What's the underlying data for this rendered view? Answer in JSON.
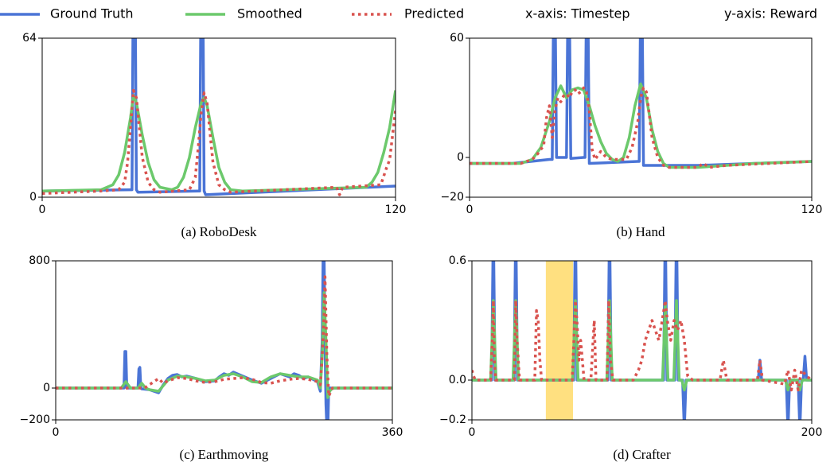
{
  "legend": {
    "items": [
      {
        "name": "Ground Truth",
        "color": "#4a74d6",
        "style": "solid"
      },
      {
        "name": "Smoothed",
        "color": "#6cc96c",
        "style": "solid"
      },
      {
        "name": "Predicted",
        "color": "#d9534f",
        "style": "dotted"
      }
    ],
    "notes": [
      "x-axis: Timestep",
      "y-axis: Reward"
    ]
  },
  "chart_data": [
    {
      "type": "line",
      "title": "(a) RoboDesk",
      "xlim": [
        0,
        120
      ],
      "xticks": [
        0,
        120
      ],
      "ylim": [
        0,
        64
      ],
      "yticks": [
        0,
        64
      ],
      "series": [
        {
          "color": "#4a74d6",
          "style": "solid",
          "x": [
            0,
            30,
            30.5,
            31,
            31.5,
            32,
            32.5,
            53,
            53.5,
            54,
            54.5,
            55,
            55.5,
            120
          ],
          "values": [
            2.5,
            3,
            3,
            100,
            100,
            3,
            2,
            2.5,
            2.5,
            100,
            100,
            2.5,
            1,
            4.5
          ]
        },
        {
          "color": "#6cc96c",
          "style": "solid",
          "x": [
            0,
            20,
            24,
            26,
            28,
            30,
            31,
            32,
            34,
            36,
            38,
            40,
            44,
            46,
            48,
            50,
            52,
            54,
            55,
            56,
            58,
            60,
            62,
            64,
            68,
            110,
            112,
            114,
            116,
            118,
            120
          ],
          "values": [
            2.5,
            3,
            5,
            9,
            18,
            32,
            41,
            38,
            25,
            14,
            7,
            4,
            3,
            4,
            8,
            16,
            28,
            38,
            40,
            37,
            24,
            12,
            6,
            3,
            2.5,
            4,
            6,
            10,
            18,
            28,
            43
          ]
        },
        {
          "color": "#d9534f",
          "style": "dotted",
          "x": [
            0,
            20,
            26,
            28,
            29,
            30,
            31,
            32,
            33,
            34,
            36,
            38,
            40,
            50,
            52,
            53,
            54,
            55,
            56,
            57,
            58,
            60,
            62,
            64,
            100,
            101,
            102,
            115,
            117,
            118,
            120
          ],
          "values": [
            1.5,
            2.5,
            3,
            6,
            14,
            28,
            43,
            40,
            28,
            16,
            6,
            3,
            2,
            3,
            8,
            20,
            34,
            42,
            38,
            26,
            14,
            5,
            3,
            2,
            4,
            1,
            4,
            5,
            12,
            15,
            35
          ]
        }
      ]
    },
    {
      "type": "line",
      "title": "(b) Hand",
      "xlim": [
        0,
        120
      ],
      "xticks": [
        0,
        120
      ],
      "ylim": [
        -20,
        60
      ],
      "yticks": [
        {
          "value": -20,
          "label": "−20"
        },
        0,
        60
      ],
      "series": [
        {
          "color": "#4a74d6",
          "style": "solid",
          "x": [
            0,
            15,
            28,
            29,
            29.5,
            30,
            30.5,
            34,
            34.5,
            35,
            35.5,
            40,
            40.5,
            41,
            41.5,
            42,
            59,
            59.5,
            60,
            60.5,
            61,
            80,
            100,
            120
          ],
          "values": [
            -3,
            -3,
            -1,
            -1,
            80,
            80,
            0,
            0,
            80,
            80,
            -0.5,
            0,
            0,
            80,
            80,
            -3,
            -2,
            -2,
            80,
            80,
            -4,
            -4,
            -3,
            -2
          ]
        },
        {
          "color": "#6cc96c",
          "style": "solid",
          "x": [
            0,
            18,
            22,
            25,
            28,
            30,
            32,
            34,
            36,
            38,
            40,
            42,
            44,
            46,
            48,
            50,
            52,
            54,
            56,
            58,
            60,
            62,
            64,
            66,
            68,
            70,
            80,
            90,
            100,
            120
          ],
          "values": [
            -3,
            -3,
            -1,
            5,
            18,
            30,
            36,
            30,
            34,
            35,
            34,
            26,
            16,
            8,
            2,
            -1,
            -2,
            0,
            10,
            26,
            37,
            30,
            14,
            3,
            -3,
            -5,
            -5,
            -4,
            -3,
            -2
          ]
        },
        {
          "color": "#d9534f",
          "style": "dotted",
          "x": [
            0,
            18,
            22,
            24,
            26,
            27,
            28,
            29,
            30,
            31,
            32,
            33,
            34,
            35,
            36,
            37,
            38,
            39,
            40,
            41,
            42,
            43,
            44,
            46,
            48,
            50,
            55,
            57,
            59,
            60,
            61,
            62,
            63,
            64,
            66,
            68,
            70,
            80,
            82,
            84,
            90,
            120
          ],
          "values": [
            -3,
            -3,
            -1,
            2,
            6,
            20,
            26,
            10,
            24,
            30,
            28,
            31,
            32,
            30,
            33,
            34,
            32,
            33,
            35,
            33,
            24,
            4,
            -1,
            3,
            0,
            -1,
            -1,
            5,
            18,
            30,
            35,
            33,
            22,
            10,
            0,
            -4,
            -5,
            -5,
            -3,
            -5,
            -4,
            -2
          ]
        }
      ]
    },
    {
      "type": "line",
      "title": "(c) Earthmoving",
      "xlim": [
        0,
        360
      ],
      "xticks": [
        0,
        360
      ],
      "ylim": [
        -200,
        800
      ],
      "yticks": [
        {
          "value": -200,
          "label": "−200"
        },
        0,
        800
      ],
      "series": [
        {
          "color": "#4a74d6",
          "style": "solid",
          "x": [
            0,
            72,
            73,
            74,
            75,
            76,
            77,
            88,
            89,
            90,
            91,
            92,
            100,
            110,
            115,
            120,
            125,
            130,
            135,
            140,
            150,
            160,
            170,
            175,
            180,
            185,
            190,
            200,
            210,
            220,
            230,
            240,
            250,
            255,
            260,
            265,
            270,
            280,
            283,
            285,
            286,
            287,
            288,
            289,
            290,
            291,
            292,
            295,
            360
          ],
          "values": [
            0,
            0,
            0,
            230,
            230,
            0,
            0,
            0,
            120,
            130,
            0,
            -5,
            -10,
            -30,
            20,
            60,
            80,
            85,
            70,
            75,
            60,
            40,
            45,
            70,
            90,
            80,
            100,
            75,
            50,
            30,
            60,
            90,
            70,
            90,
            80,
            60,
            70,
            40,
            -20,
            300,
            850,
            850,
            300,
            -100,
            -250,
            -250,
            0,
            0,
            0
          ]
        },
        {
          "color": "#6cc96c",
          "style": "solid",
          "x": [
            0,
            70,
            75,
            80,
            88,
            92,
            96,
            100,
            110,
            120,
            130,
            140,
            150,
            160,
            170,
            180,
            190,
            200,
            210,
            220,
            230,
            240,
            250,
            260,
            270,
            280,
            283,
            285,
            287,
            289,
            291,
            293,
            296,
            360
          ],
          "values": [
            0,
            0,
            40,
            0,
            0,
            30,
            0,
            -10,
            -20,
            50,
            75,
            70,
            60,
            45,
            50,
            80,
            90,
            70,
            40,
            35,
            70,
            90,
            80,
            70,
            70,
            50,
            0,
            200,
            600,
            300,
            -60,
            -20,
            0,
            0
          ]
        },
        {
          "color": "#d9534f",
          "style": "dotted",
          "x": [
            0,
            80,
            95,
            100,
            105,
            110,
            115,
            120,
            130,
            140,
            150,
            160,
            170,
            180,
            190,
            200,
            210,
            220,
            230,
            240,
            250,
            260,
            270,
            280,
            283,
            285,
            287,
            288,
            290,
            292,
            296,
            360
          ],
          "values": [
            0,
            0,
            0,
            20,
            40,
            60,
            30,
            45,
            65,
            60,
            45,
            35,
            40,
            55,
            60,
            65,
            55,
            35,
            30,
            45,
            55,
            60,
            55,
            40,
            20,
            200,
            450,
            700,
            200,
            -50,
            0,
            0
          ]
        }
      ]
    },
    {
      "type": "line",
      "title": "(d) Crafter",
      "xlim": [
        0,
        200
      ],
      "xticks": [
        0,
        200
      ],
      "ylim": [
        -0.2,
        0.6
      ],
      "yticks": [
        {
          "value": -0.2,
          "label": "−0.2"
        },
        {
          "value": 0,
          "label": "0.0"
        },
        0.6
      ],
      "span": {
        "x": [
          43.5,
          59.5
        ],
        "color": "#ffe080"
      },
      "series": [
        {
          "color": "#4a74d6",
          "style": "solid",
          "x": [
            0,
            11.6,
            12.6,
            13.6,
            24.8,
            25.8,
            26.8,
            59.9,
            60.9,
            61.9,
            80,
            81,
            82,
            112.8,
            113.8,
            114.8,
            119.4,
            120.4,
            121.4,
            124,
            125,
            126,
            168.5,
            169.5,
            170.5,
            185,
            186,
            187,
            192,
            193,
            194,
            195,
            196,
            197,
            200
          ],
          "values": [
            0,
            0,
            0.8,
            0,
            0,
            0.8,
            0,
            0,
            0.8,
            0,
            0,
            0.8,
            0,
            0,
            0.8,
            0,
            0,
            0.8,
            0,
            0,
            -0.25,
            0,
            0,
            0.1,
            0,
            0,
            -0.25,
            0,
            0,
            -0.25,
            0,
            0,
            0.12,
            0,
            0
          ]
        },
        {
          "color": "#6cc96c",
          "style": "solid",
          "x": [
            0,
            11,
            12.6,
            14.2,
            24.2,
            25.8,
            27.4,
            59.3,
            60.9,
            62.5,
            79.4,
            81,
            82.6,
            112.2,
            113.8,
            115.4,
            118.8,
            120.4,
            122,
            123.5,
            125,
            126.5,
            184.5,
            186,
            187.5,
            191.5,
            193,
            194.5,
            200
          ],
          "values": [
            0,
            0,
            0.4,
            0,
            0,
            0.4,
            0,
            0,
            0.4,
            0,
            0,
            0.4,
            0,
            0,
            0.38,
            0,
            0,
            0.4,
            0,
            0,
            -0.05,
            0,
            0,
            -0.05,
            0,
            0,
            -0.05,
            0,
            0
          ]
        },
        {
          "color": "#d9534f",
          "style": "dotted",
          "x": [
            0,
            1,
            2,
            3,
            11,
            12,
            12.6,
            13.2,
            14,
            25,
            25.8,
            26.6,
            28,
            37,
            38,
            39,
            40,
            41,
            59,
            60,
            60.9,
            61.8,
            63,
            64,
            66,
            70,
            72,
            73,
            79.5,
            80.5,
            81.5,
            83,
            95,
            98,
            100,
            102,
            104,
            106,
            108,
            110,
            112,
            113.8,
            115,
            117,
            119,
            121,
            123,
            125,
            127,
            130,
            140,
            146,
            148,
            150,
            168,
            169.5,
            171,
            184,
            186,
            188,
            190,
            192,
            194,
            197,
            200
          ],
          "values": [
            0.05,
            0.02,
            0,
            0,
            0,
            0.2,
            0.4,
            0.1,
            0,
            0,
            0.4,
            0.2,
            0,
            0,
            0.35,
            0.3,
            0.1,
            0,
            0,
            0.2,
            0.4,
            0.3,
            0.1,
            0.2,
            0,
            0,
            0.3,
            0,
            0,
            0.4,
            0.1,
            0,
            0,
            0.05,
            0.1,
            0.2,
            0.25,
            0.3,
            0.25,
            0.2,
            0.3,
            0.4,
            0.3,
            0.2,
            0.3,
            0.25,
            0.3,
            0.2,
            0.02,
            0,
            0,
            0,
            0.1,
            0,
            0,
            0.1,
            0,
            -0.02,
            0.05,
            -0.05,
            0.05,
            -0.05,
            0.05,
            0.02,
            0
          ]
        }
      ]
    }
  ]
}
